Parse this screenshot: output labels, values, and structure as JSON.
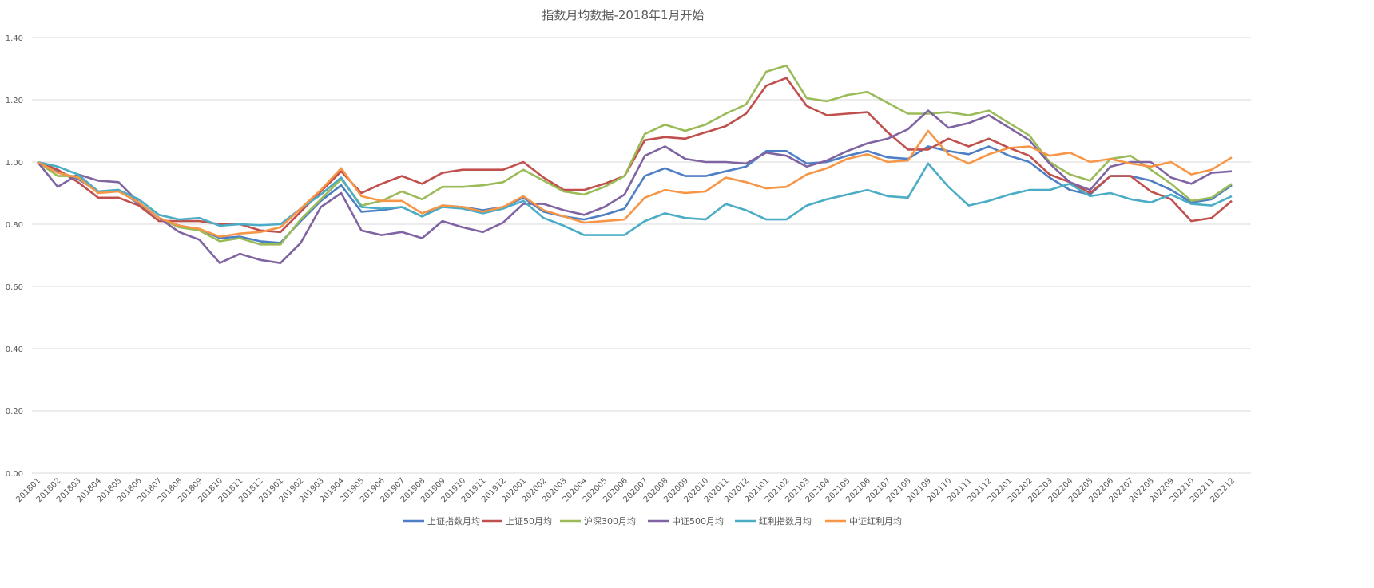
{
  "chart_data": {
    "type": "line",
    "title": "指数月均数据-2018年1月开始",
    "xlabel": "",
    "ylabel": "",
    "ylim": [
      0,
      1.4
    ],
    "yticks": [
      "0.00",
      "0.20",
      "0.40",
      "0.60",
      "0.80",
      "1.00",
      "1.20",
      "1.40"
    ],
    "grid": true,
    "legend_position": "bottom",
    "categories": [
      "201801",
      "201802",
      "201803",
      "201804",
      "201805",
      "201806",
      "201807",
      "201808",
      "201809",
      "201810",
      "201811",
      "201812",
      "201901",
      "201902",
      "201903",
      "201904",
      "201905",
      "201906",
      "201907",
      "201908",
      "201909",
      "201910",
      "201911",
      "201912",
      "202001",
      "202002",
      "202003",
      "202004",
      "202005",
      "202006",
      "202007",
      "202008",
      "202009",
      "202010",
      "202011",
      "202012",
      "202101",
      "202102",
      "202103",
      "202104",
      "202105",
      "202106",
      "202107",
      "202108",
      "202109",
      "202110",
      "202111",
      "202112",
      "202201",
      "202202",
      "202203",
      "202204",
      "202205",
      "202206",
      "202207",
      "202208",
      "202209",
      "202210",
      "202211",
      "202212"
    ],
    "series": [
      {
        "name": "上证指数月均",
        "color": "#4e7fc4",
        "values": [
          1.0,
          0.97,
          0.945,
          0.905,
          0.91,
          0.865,
          0.82,
          0.795,
          0.785,
          0.755,
          0.76,
          0.745,
          0.74,
          0.81,
          0.875,
          0.925,
          0.84,
          0.845,
          0.855,
          0.825,
          0.86,
          0.855,
          0.845,
          0.855,
          0.885,
          0.84,
          0.825,
          0.815,
          0.83,
          0.85,
          0.955,
          0.98,
          0.955,
          0.955,
          0.97,
          0.985,
          1.035,
          1.035,
          0.995,
          1.0,
          1.02,
          1.035,
          1.015,
          1.01,
          1.05,
          1.035,
          1.025,
          1.05,
          1.02,
          1.0,
          0.95,
          0.91,
          0.895,
          0.955,
          0.955,
          0.94,
          0.91,
          0.87,
          0.88,
          0.925
        ]
      },
      {
        "name": "上证50月均",
        "color": "#c0504d",
        "values": [
          1.0,
          0.975,
          0.935,
          0.885,
          0.885,
          0.86,
          0.81,
          0.81,
          0.81,
          0.8,
          0.8,
          0.78,
          0.775,
          0.84,
          0.905,
          0.97,
          0.9,
          0.93,
          0.955,
          0.93,
          0.965,
          0.975,
          0.975,
          0.975,
          1.0,
          0.95,
          0.91,
          0.91,
          0.93,
          0.955,
          1.07,
          1.08,
          1.075,
          1.095,
          1.115,
          1.155,
          1.245,
          1.27,
          1.18,
          1.15,
          1.155,
          1.16,
          1.095,
          1.04,
          1.04,
          1.075,
          1.05,
          1.075,
          1.045,
          1.02,
          0.96,
          0.935,
          0.9,
          0.955,
          0.955,
          0.905,
          0.88,
          0.81,
          0.82,
          0.875
        ]
      },
      {
        "name": "沪深300月均",
        "color": "#9bbb59",
        "values": [
          1.0,
          0.955,
          0.955,
          0.9,
          0.91,
          0.87,
          0.82,
          0.79,
          0.78,
          0.745,
          0.755,
          0.735,
          0.735,
          0.815,
          0.88,
          0.945,
          0.86,
          0.875,
          0.905,
          0.88,
          0.92,
          0.92,
          0.925,
          0.935,
          0.975,
          0.94,
          0.905,
          0.895,
          0.92,
          0.955,
          1.09,
          1.12,
          1.1,
          1.12,
          1.155,
          1.185,
          1.29,
          1.31,
          1.205,
          1.195,
          1.215,
          1.225,
          1.19,
          1.155,
          1.155,
          1.16,
          1.15,
          1.165,
          1.125,
          1.085,
          1.0,
          0.96,
          0.94,
          1.01,
          1.02,
          0.975,
          0.93,
          0.875,
          0.885,
          0.93
        ]
      },
      {
        "name": "中证500月均",
        "color": "#8064a2",
        "values": [
          1.0,
          0.92,
          0.96,
          0.94,
          0.935,
          0.87,
          0.82,
          0.775,
          0.75,
          0.675,
          0.705,
          0.685,
          0.675,
          0.74,
          0.855,
          0.9,
          0.78,
          0.765,
          0.775,
          0.755,
          0.81,
          0.79,
          0.775,
          0.805,
          0.865,
          0.865,
          0.845,
          0.83,
          0.855,
          0.895,
          1.02,
          1.05,
          1.01,
          1.0,
          1.0,
          0.995,
          1.03,
          1.02,
          0.985,
          1.005,
          1.035,
          1.06,
          1.075,
          1.105,
          1.165,
          1.11,
          1.125,
          1.15,
          1.11,
          1.07,
          0.995,
          0.935,
          0.91,
          0.985,
          1.0,
          1.0,
          0.95,
          0.93,
          0.965,
          0.97
        ]
      },
      {
        "name": "红利指数月均",
        "color": "#4bacc6",
        "values": [
          1.0,
          0.985,
          0.96,
          0.905,
          0.91,
          0.88,
          0.83,
          0.815,
          0.82,
          0.795,
          0.8,
          0.797,
          0.8,
          0.85,
          0.895,
          0.95,
          0.855,
          0.85,
          0.855,
          0.825,
          0.855,
          0.85,
          0.835,
          0.85,
          0.875,
          0.82,
          0.795,
          0.765,
          0.765,
          0.765,
          0.81,
          0.835,
          0.82,
          0.815,
          0.865,
          0.845,
          0.815,
          0.815,
          0.86,
          0.88,
          0.895,
          0.91,
          0.89,
          0.885,
          0.995,
          0.92,
          0.86,
          0.875,
          0.895,
          0.91,
          0.91,
          0.93,
          0.89,
          0.9,
          0.88,
          0.87,
          0.895,
          0.865,
          0.86,
          0.89
        ]
      },
      {
        "name": "中证红利月均",
        "color": "#f79646",
        "values": [
          1.0,
          0.965,
          0.95,
          0.9,
          0.905,
          0.87,
          0.82,
          0.795,
          0.785,
          0.76,
          0.77,
          0.775,
          0.79,
          0.85,
          0.91,
          0.98,
          0.89,
          0.875,
          0.875,
          0.835,
          0.86,
          0.855,
          0.84,
          0.855,
          0.89,
          0.845,
          0.825,
          0.805,
          0.81,
          0.815,
          0.885,
          0.91,
          0.9,
          0.905,
          0.95,
          0.935,
          0.915,
          0.92,
          0.96,
          0.98,
          1.01,
          1.025,
          1.0,
          1.005,
          1.1,
          1.025,
          0.995,
          1.025,
          1.045,
          1.05,
          1.02,
          1.03,
          1.0,
          1.01,
          0.995,
          0.985,
          1.0,
          0.96,
          0.975,
          1.015
        ]
      }
    ]
  }
}
